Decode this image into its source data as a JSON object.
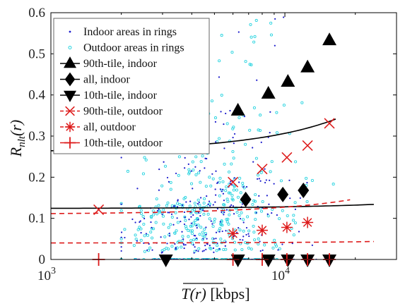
{
  "chart_data": {
    "type": "scatter",
    "xlabel_main": "T(r)",
    "xlabel_unit": " [kbps]",
    "ylabel_main": "R",
    "ylabel_sub": "nlt",
    "ylabel_tail": "(r)",
    "x_scale": "log",
    "xlim": [
      1000,
      30000
    ],
    "ylim": [
      0,
      0.6
    ],
    "x_ticks": [
      {
        "value": 1000,
        "base": "10",
        "exp": "3"
      },
      {
        "value": 10000,
        "base": "10",
        "exp": "4"
      }
    ],
    "y_ticks": [
      {
        "value": 0,
        "label": "0"
      },
      {
        "value": 0.1,
        "label": "0.1"
      },
      {
        "value": 0.2,
        "label": "0.2"
      },
      {
        "value": 0.3,
        "label": "0.3"
      },
      {
        "value": 0.4,
        "label": "0.4"
      },
      {
        "value": 0.5,
        "label": "0.5"
      },
      {
        "value": 0.6,
        "label": "0.6"
      }
    ],
    "grid": false,
    "legend_position": "top-left",
    "colors": {
      "indoor": "#1a1acc",
      "outdoor": "#2ad4e0",
      "indoor_fit": "#000000",
      "outdoor_fit": "#dd1a1a"
    },
    "legend": [
      "Indoor areas in rings",
      "Outdoor areas in rings",
      "90th-tile, indoor",
      "all, indoor",
      "10th-tile, indoor",
      "90th-tile, outdoor",
      "all, outdoor",
      "10th-tile, outdoor"
    ],
    "series": [
      {
        "marker": "triangle-up",
        "color": "#000000",
        "x": [
          6300,
          8500,
          10300,
          12500,
          15500
        ],
        "y": [
          0.362,
          0.403,
          0.432,
          0.467,
          0.533
        ]
      },
      {
        "marker": "diamond",
        "color": "#000000",
        "x": [
          6800,
          9800,
          12000
        ],
        "y": [
          0.146,
          0.158,
          0.168
        ]
      },
      {
        "marker": "triangle-down",
        "color": "#000000",
        "x": [
          3100,
          6300,
          8500,
          10300,
          12500,
          15500
        ],
        "y": [
          0,
          0,
          0,
          0,
          0,
          0
        ]
      },
      {
        "marker": "x",
        "color": "#dd1a1a",
        "x": [
          1600,
          6000,
          8000,
          10200,
          12500,
          15500
        ],
        "y": [
          0.121,
          0.188,
          0.22,
          0.248,
          0.277,
          0.331
        ]
      },
      {
        "marker": "asterisk",
        "color": "#dd1a1a",
        "x": [
          6000,
          8000,
          10200,
          12500
        ],
        "y": [
          0.063,
          0.071,
          0.078,
          0.09
        ]
      },
      {
        "marker": "plus",
        "color": "#dd1a1a",
        "x": [
          1600,
          6000,
          8000,
          10200,
          12500,
          15500
        ],
        "y": [
          0,
          0,
          0,
          0,
          0,
          0
        ]
      }
    ],
    "fits": [
      {
        "kind": "indoor-90",
        "style": "solid",
        "color": "#000000",
        "x_range": [
          1000,
          16500
        ],
        "a": 0.26,
        "b": 1.65e-05
      },
      {
        "kind": "indoor-all",
        "style": "solid",
        "color": "#000000",
        "x_range": [
          1000,
          24000
        ],
        "a": 0.124,
        "b": 3.2e-06
      },
      {
        "kind": "outdoor-90",
        "style": "dashed",
        "color": "#dd1a1a",
        "x_range": [
          1000,
          19000
        ],
        "a": 0.11,
        "b": 1.46e-05
      },
      {
        "kind": "outdoor-all",
        "style": "dashed",
        "color": "#dd1a1a",
        "x_range": [
          1000,
          24000
        ],
        "a": 0.04,
        "b": 3.6e-06
      }
    ]
  }
}
